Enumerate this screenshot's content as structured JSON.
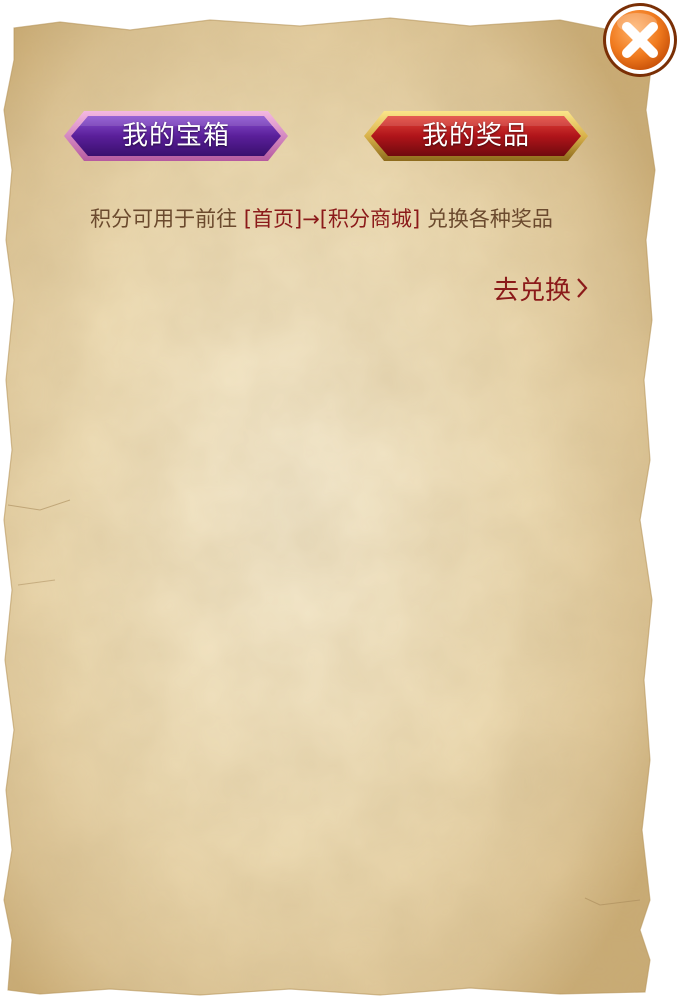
{
  "tabs": {
    "my_chest": "我的宝箱",
    "my_prizes": "我的奖品"
  },
  "info": {
    "prefix": "积分可用于前往",
    "link_home": "[首页]",
    "arrow": "→",
    "link_mall": "[积分商城]",
    "suffix": "兑换各种奖品"
  },
  "exchange": {
    "label": "去兑换"
  },
  "icons": {
    "close": "close-icon",
    "chevron": "chevron-right-icon"
  },
  "colors": {
    "parchment": "#efe2c0",
    "tab_purple": "#5a1f9a",
    "tab_red": "#b0141a",
    "gold_border": "#d9b24a",
    "link_red": "#8b1a1a",
    "text_brown": "#6b4a2e",
    "close_orange": "#f07a1e"
  }
}
